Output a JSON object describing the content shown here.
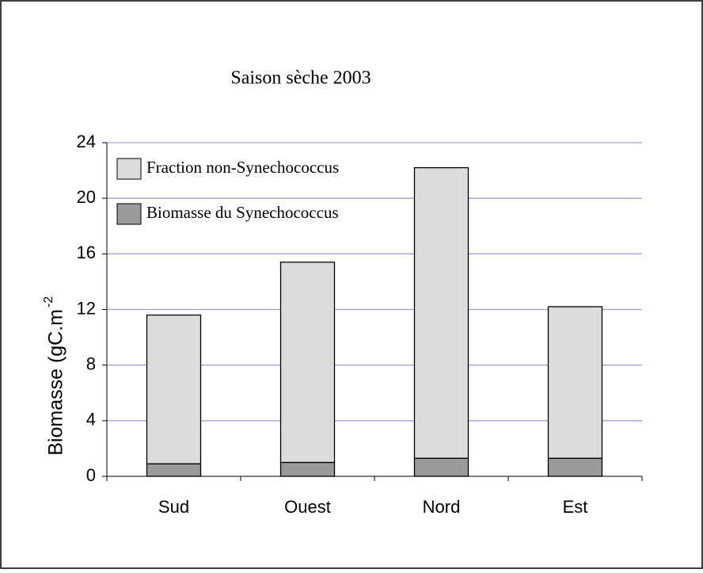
{
  "chart_data": {
    "type": "stacked_bar",
    "title": "Saison sèche 2003",
    "y_label": "Biomasse (gC.m",
    "y_label_superscript": "-2",
    "categories": [
      "Sud",
      "Ouest",
      "Nord",
      "Est"
    ],
    "series": [
      {
        "name": "Biomasse du Synechococcus",
        "color": "#9a9a9a",
        "values": [
          0.9,
          1.0,
          1.3,
          1.3
        ]
      },
      {
        "name": "Fraction non-Synechococcus",
        "color": "#dcdcdc",
        "values": [
          10.7,
          14.4,
          20.9,
          10.9
        ]
      }
    ],
    "ylim": [
      0,
      24
    ],
    "yticks": [
      0,
      4,
      8,
      12,
      16,
      20,
      24
    ],
    "grid": true,
    "grid_color": "#a89cdc",
    "legend": "upper left"
  }
}
